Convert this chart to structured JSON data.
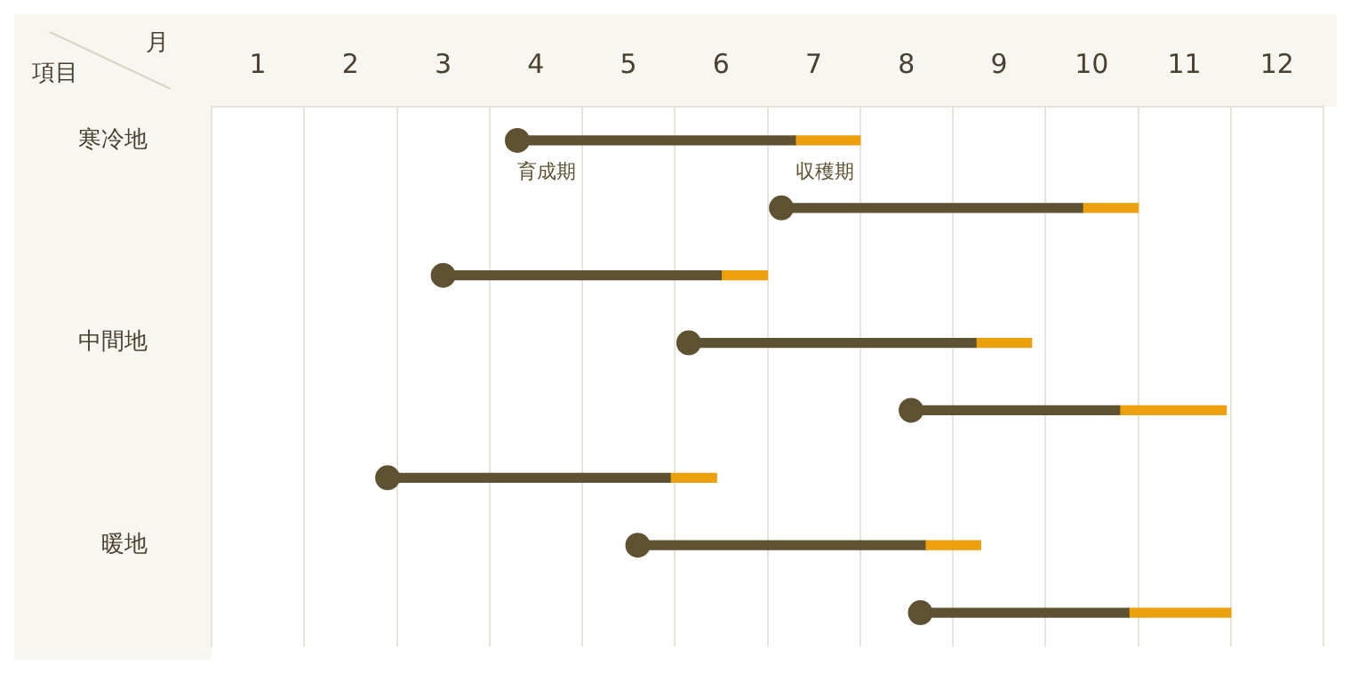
{
  "chart_data": {
    "type": "bar",
    "orientation": "horizontal",
    "xlabel": "月",
    "ylabel": "項目",
    "categories": [
      "寒冷地",
      null,
      null,
      "中間地",
      null,
      null,
      "暖地",
      null
    ],
    "series": [
      {
        "name": "育成期",
        "color": "#5e5233",
        "base": [
          3.8,
          6.65,
          3.0,
          5.65,
          8.05,
          2.4,
          5.1,
          8.15
        ],
        "values": [
          3.0,
          3.25,
          3.0,
          3.1,
          2.25,
          3.05,
          3.1,
          2.25
        ]
      },
      {
        "name": "収穫期",
        "color": "#eba00c",
        "base": [
          6.8,
          9.9,
          6.0,
          8.75,
          10.3,
          5.45,
          8.2,
          10.4
        ],
        "values": [
          0.7,
          0.6,
          0.5,
          0.6,
          1.15,
          0.5,
          0.6,
          1.1
        ]
      },
      {
        "type": "scatter",
        "color": "#5e5233",
        "marker": "circle",
        "values": [
          3.8,
          6.65,
          3.0,
          5.65,
          8.05,
          2.4,
          5.1,
          8.15
        ]
      }
    ],
    "xlim": [
      0.5,
      12.5
    ],
    "xticks": [
      1,
      2,
      3,
      4,
      5,
      6,
      7,
      8,
      9,
      10,
      11,
      12
    ],
    "grid": "x",
    "legend": false
  }
}
